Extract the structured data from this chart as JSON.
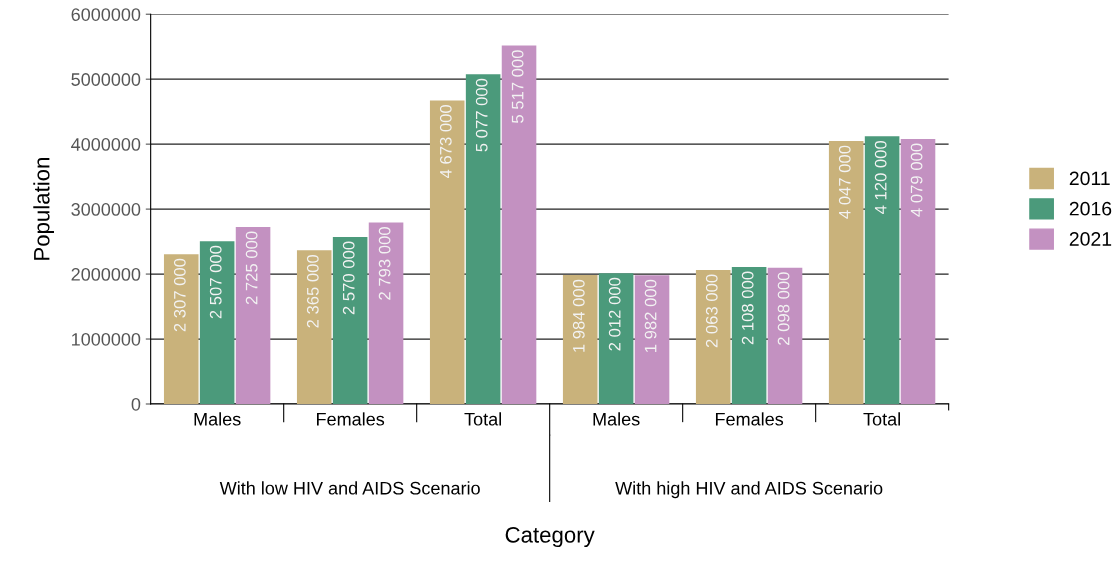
{
  "chart_data": {
    "type": "bar",
    "xlabel": "Category",
    "ylabel": "Population",
    "categories": [
      "Males",
      "Females",
      "Total",
      "Males",
      "Females",
      "Total"
    ],
    "annotations": [
      "With low HIV and AIDS Scenario",
      "With high HIV and AIDS Scenario"
    ],
    "series": [
      {
        "name": "2011",
        "color": "#c9b27b",
        "values": [
          2307000,
          2365000,
          4673000,
          1984000,
          2063000,
          4047000
        ],
        "value_labels": [
          "2 307 000",
          "2 365 000",
          "4 673 000",
          "1 984 000",
          "2 063 000",
          "4 047 000"
        ]
      },
      {
        "name": "2016",
        "color": "#4b9a7b",
        "values": [
          2507000,
          2570000,
          5077000,
          2012000,
          2108000,
          4120000
        ],
        "value_labels": [
          "2 507 000",
          "2 570 000",
          "5 077 000",
          "2 012 000",
          "2 108 000",
          "4 120 000"
        ]
      },
      {
        "name": "2021",
        "color": "#c391c1",
        "values": [
          2725000,
          2793000,
          5517000,
          1982000,
          2098000,
          4079000
        ],
        "value_labels": [
          "2 725 000",
          "2 793 000",
          "5 517 000",
          "1 982 000",
          "2 098 000",
          "4 079 000"
        ]
      }
    ],
    "ylim": [
      0,
      6000000
    ],
    "yticks": [
      0,
      1000000,
      2000000,
      3000000,
      4000000,
      5000000,
      6000000
    ],
    "grid": "y",
    "legend": "right"
  }
}
